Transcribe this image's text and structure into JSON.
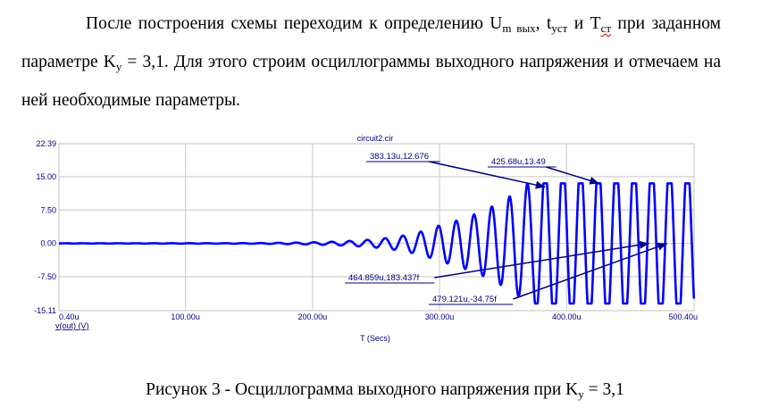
{
  "paragraph": {
    "part1": "После построения схемы переходим к определению U",
    "sub_um": "m вых",
    "part2": ", t",
    "sub_t": "уст",
    "part3": " и T",
    "sub_T": "ст",
    "part4": " при заданном параметре K",
    "sub_k": "у",
    "part5": " = 3,1. Для этого строим осциллограммы выходного напряжения и отмечаем на ней необходимые параметры."
  },
  "caption": {
    "text": "Рисунок 3 - Осциллограмма выходного напряжения при K",
    "sub": "у",
    "tail": " = 3,1"
  },
  "chart_data": {
    "type": "line",
    "title": "circuit2.cir",
    "xlabel": "T (Secs)",
    "trace_label": "v(out) (V)",
    "xlim": [
      0.4,
      500.4
    ],
    "ylim": [
      -15.11,
      22.39
    ],
    "x_tick_labels": [
      "0.40u",
      "100.00u",
      "200.00u",
      "300.00u",
      "400.00u",
      "500.40u"
    ],
    "x_ticks": [
      0.4,
      100,
      200,
      300,
      400,
      500.4
    ],
    "y_tick_labels": [
      "22.39",
      "15.00",
      "7.50",
      "0.00",
      "-7.50",
      "-15.11"
    ],
    "y_ticks": [
      22.39,
      15,
      7.5,
      0,
      -7.5,
      -15.11
    ],
    "grid": true,
    "line_color": "#0000ff",
    "annotation_color": "#000080",
    "series": [
      {
        "description": "growing sinusoid, clipping at about +13.49 / -13.5",
        "period_us": 14,
        "envelope": [
          [
            0.4,
            0.02
          ],
          [
            150,
            0.05
          ],
          [
            250,
            0.7
          ],
          [
            300,
            3.0
          ],
          [
            340,
            6.0
          ],
          [
            383.13,
            12.676
          ],
          [
            400,
            13.49
          ],
          [
            500.4,
            13.49
          ]
        ]
      }
    ],
    "annotations": [
      {
        "text": "383.13u,12.676",
        "x": 383.13,
        "y": 12.676
      },
      {
        "text": "425.68u,13.49",
        "x": 425.68,
        "y": 13.49
      },
      {
        "text": "464.859u,183.437f",
        "x": 464.859,
        "y": 0
      },
      {
        "text": "479.121u,-34.75f",
        "x": 479.121,
        "y": 0
      }
    ]
  }
}
